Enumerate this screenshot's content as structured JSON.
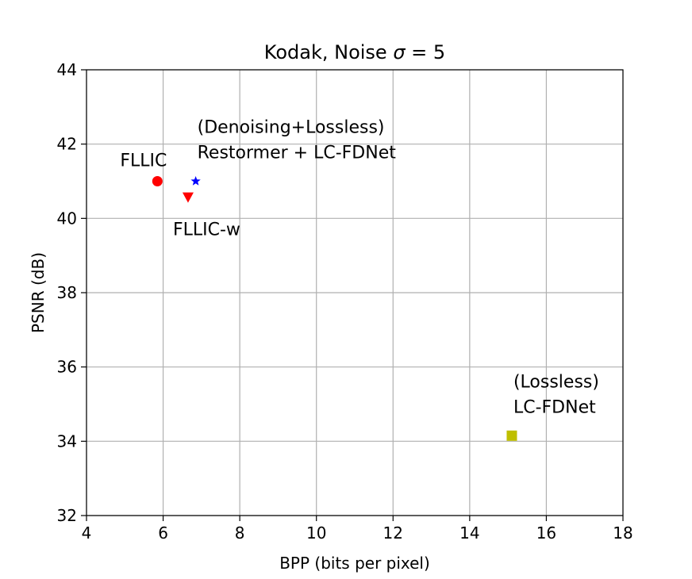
{
  "chart_data": {
    "type": "scatter",
    "title_prefix": "Kodak, Noise ",
    "title_symbol": "σ",
    "title_suffix": " = 5",
    "xlabel": "BPP (bits per pixel)",
    "ylabel": "PSNR (dB)",
    "xlim": [
      4,
      18
    ],
    "ylim": [
      32,
      44
    ],
    "xticks": [
      4,
      6,
      8,
      10,
      12,
      14,
      16,
      18
    ],
    "yticks": [
      32,
      34,
      36,
      38,
      40,
      42,
      44
    ],
    "grid": true,
    "points": [
      {
        "label_lines": [
          "FLLIC"
        ],
        "x": 5.85,
        "y": 41.0,
        "marker": "circle",
        "color": "#ff0000",
        "label_pos": "above"
      },
      {
        "label_lines": [
          "FLLIC-w"
        ],
        "x": 6.65,
        "y": 40.55,
        "marker": "triangle-down",
        "color": "#ff0000",
        "label_pos": "below"
      },
      {
        "label_lines": [
          "(Denoising+Lossless)",
          "Restormer + LC-FDNet"
        ],
        "x": 6.85,
        "y": 41.0,
        "marker": "star",
        "color": "#0000ff",
        "label_pos": "above"
      },
      {
        "label_lines": [
          "(Lossless)",
          "LC-FDNet"
        ],
        "x": 15.1,
        "y": 34.15,
        "marker": "square",
        "color": "#bfbf00",
        "label_pos": "above"
      }
    ]
  }
}
